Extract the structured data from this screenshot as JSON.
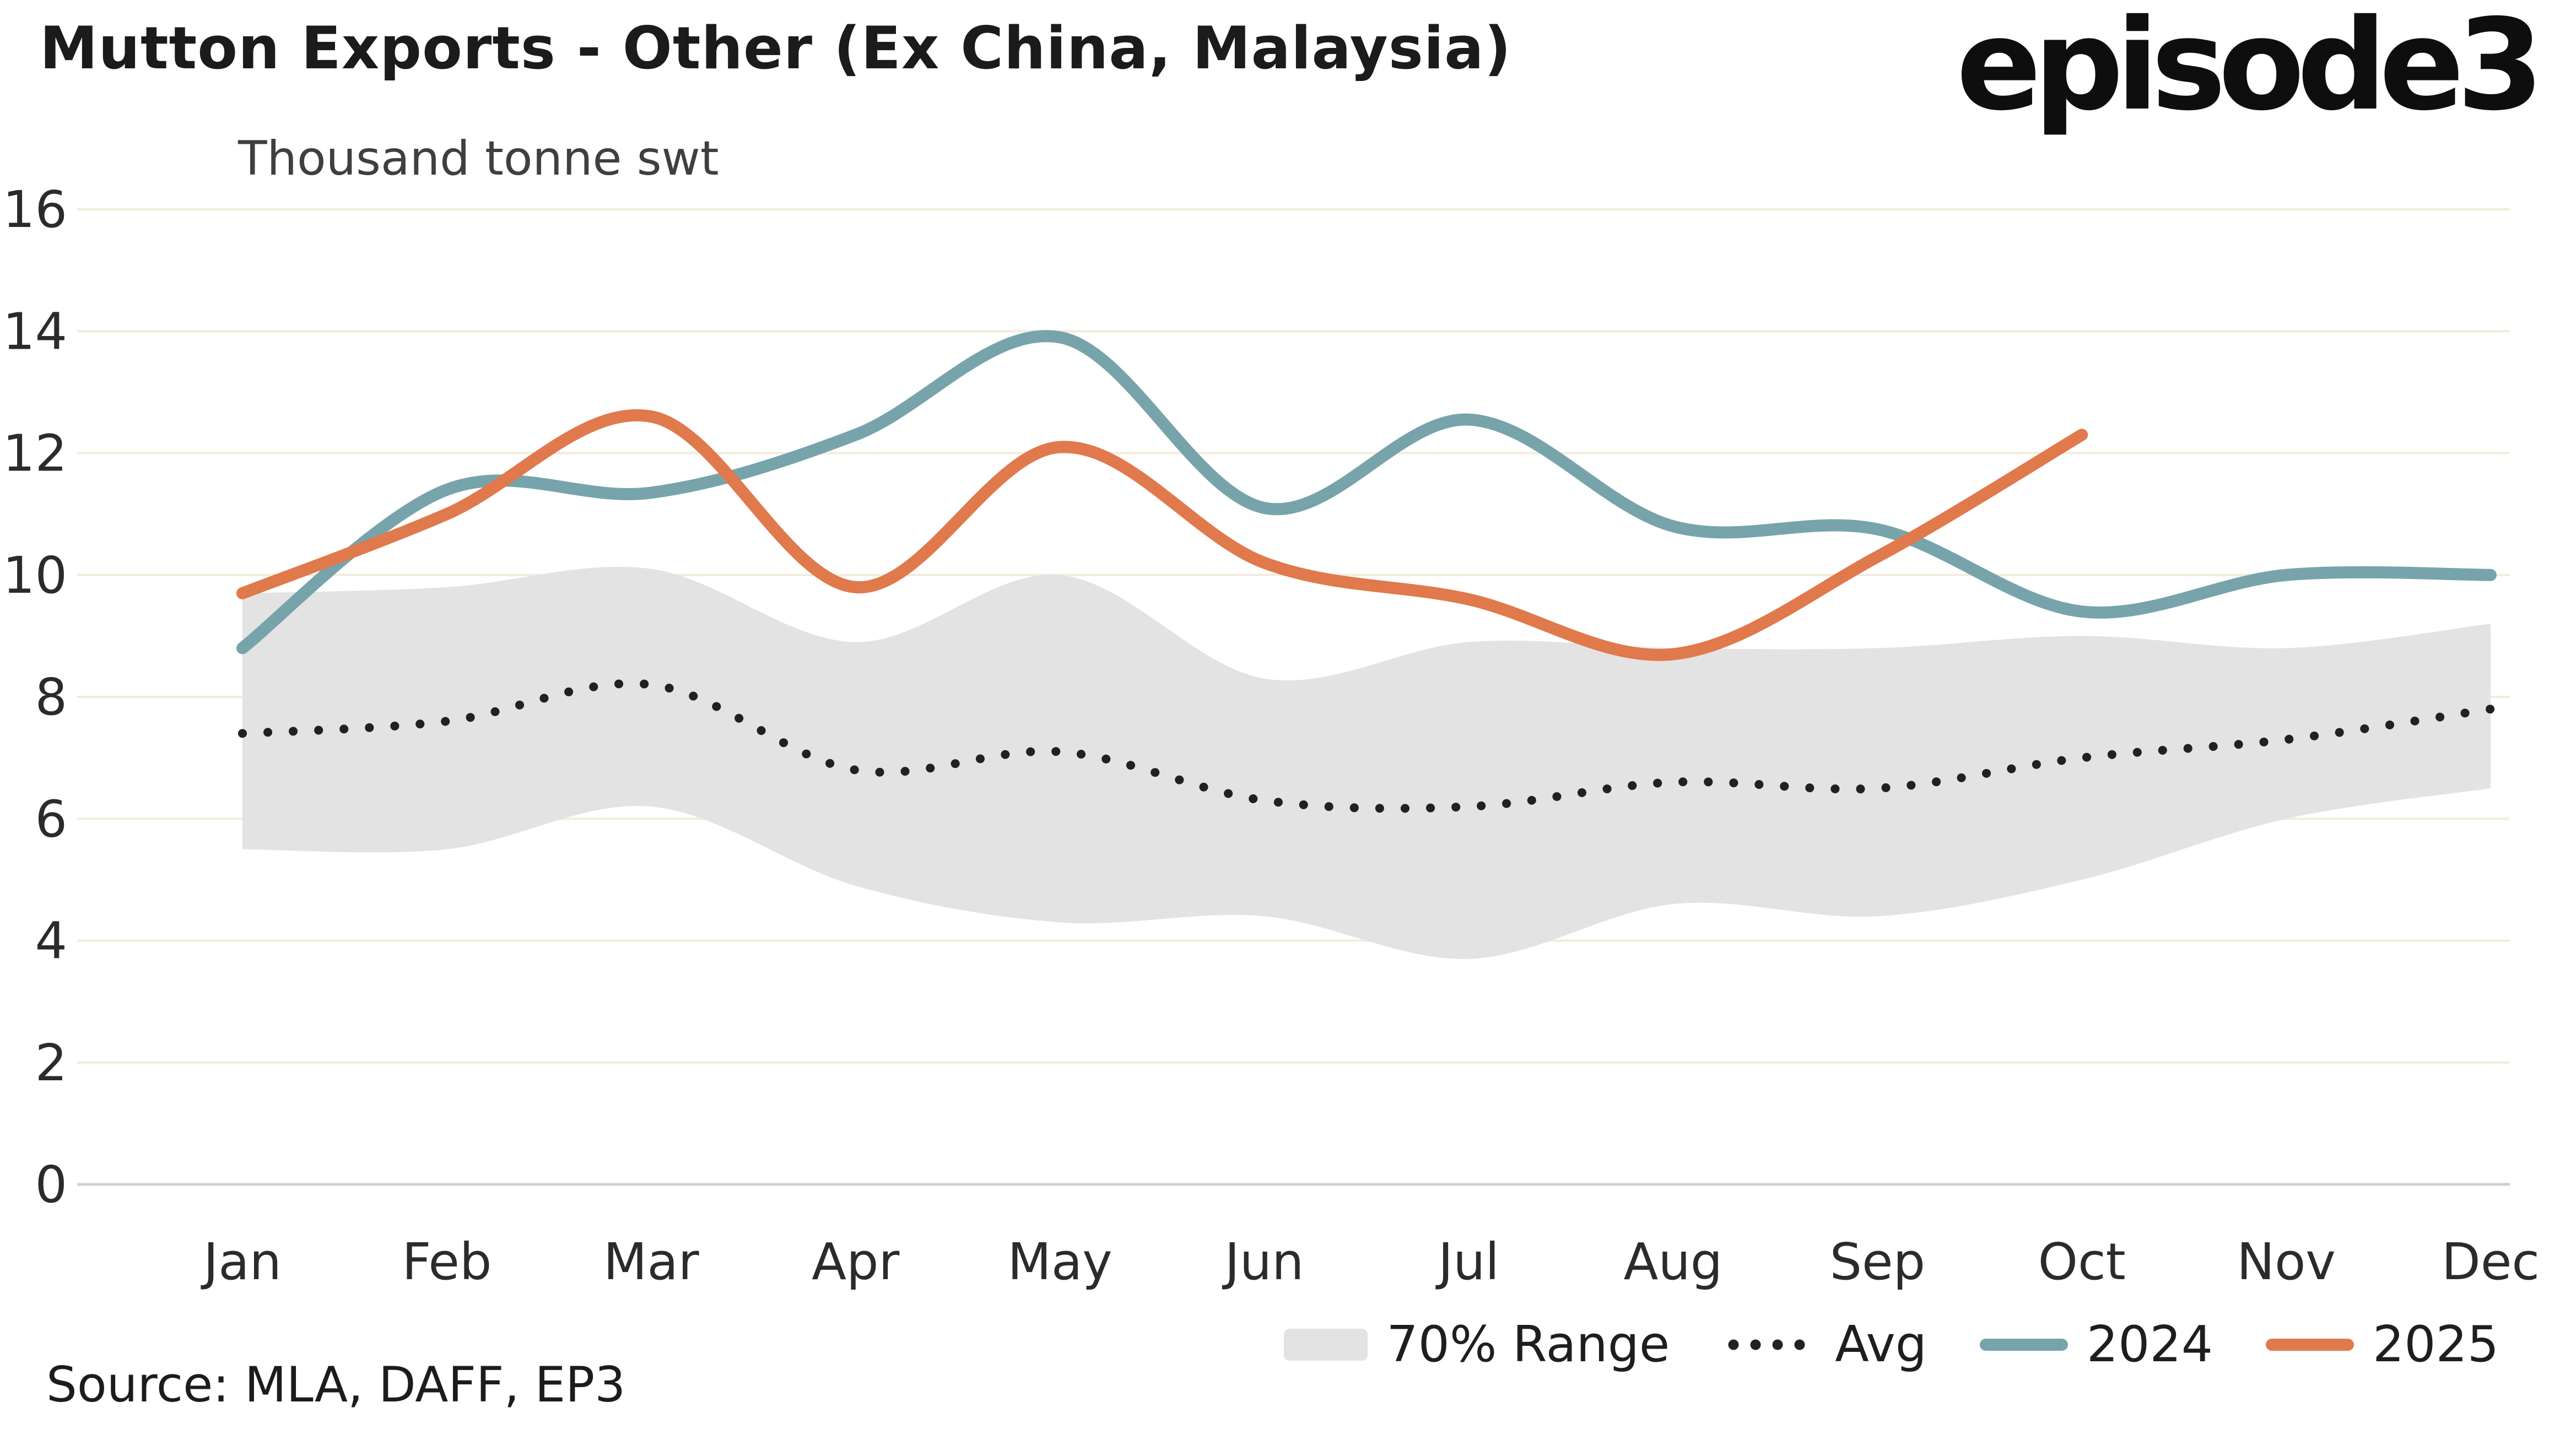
{
  "header": {
    "logo": "episode3"
  },
  "chart_data": {
    "type": "line",
    "title": "Mutton Exports - Other (Ex China, Malaysia)",
    "subtitle": "Thousand tonne swt",
    "categories": [
      "Jan",
      "Feb",
      "Mar",
      "Apr",
      "May",
      "Jun",
      "Jul",
      "Aug",
      "Sep",
      "Oct",
      "Nov",
      "Dec"
    ],
    "ylim": [
      0,
      16
    ],
    "yticks": [
      0,
      2,
      4,
      6,
      8,
      10,
      12,
      14,
      16
    ],
    "grid": "horizontal",
    "legend_position": "bottom-right",
    "band": {
      "name": "70% Range",
      "color": "#e3e3e3",
      "lower": [
        5.5,
        5.5,
        6.2,
        4.9,
        4.3,
        4.4,
        3.7,
        4.6,
        4.4,
        5.0,
        6.0,
        6.5
      ],
      "upper": [
        9.7,
        9.8,
        10.1,
        8.9,
        10.0,
        8.3,
        8.9,
        8.8,
        8.8,
        9.0,
        8.8,
        9.2
      ]
    },
    "series": [
      {
        "name": "Avg",
        "style": "dotted",
        "color": "#212121",
        "values": [
          7.4,
          7.6,
          8.2,
          6.8,
          7.1,
          6.3,
          6.2,
          6.6,
          6.5,
          7.0,
          7.3,
          7.8
        ]
      },
      {
        "name": "2024",
        "style": "solid",
        "color": "#77a4ab",
        "values": [
          8.8,
          11.4,
          11.35,
          12.3,
          13.9,
          11.1,
          12.55,
          10.8,
          10.75,
          9.4,
          10.0,
          10.0
        ]
      },
      {
        "name": "2025",
        "style": "solid",
        "color": "#e0794c",
        "values": [
          9.7,
          11.0,
          12.6,
          9.8,
          12.1,
          10.2,
          9.6,
          8.7,
          10.3,
          12.3,
          null,
          null
        ]
      }
    ],
    "colors": {
      "gridline": "#f3ecdd",
      "axis": "#cfcfcf",
      "tick_text": "#2b2b2b"
    }
  },
  "source": "Source: MLA, DAFF, EP3"
}
